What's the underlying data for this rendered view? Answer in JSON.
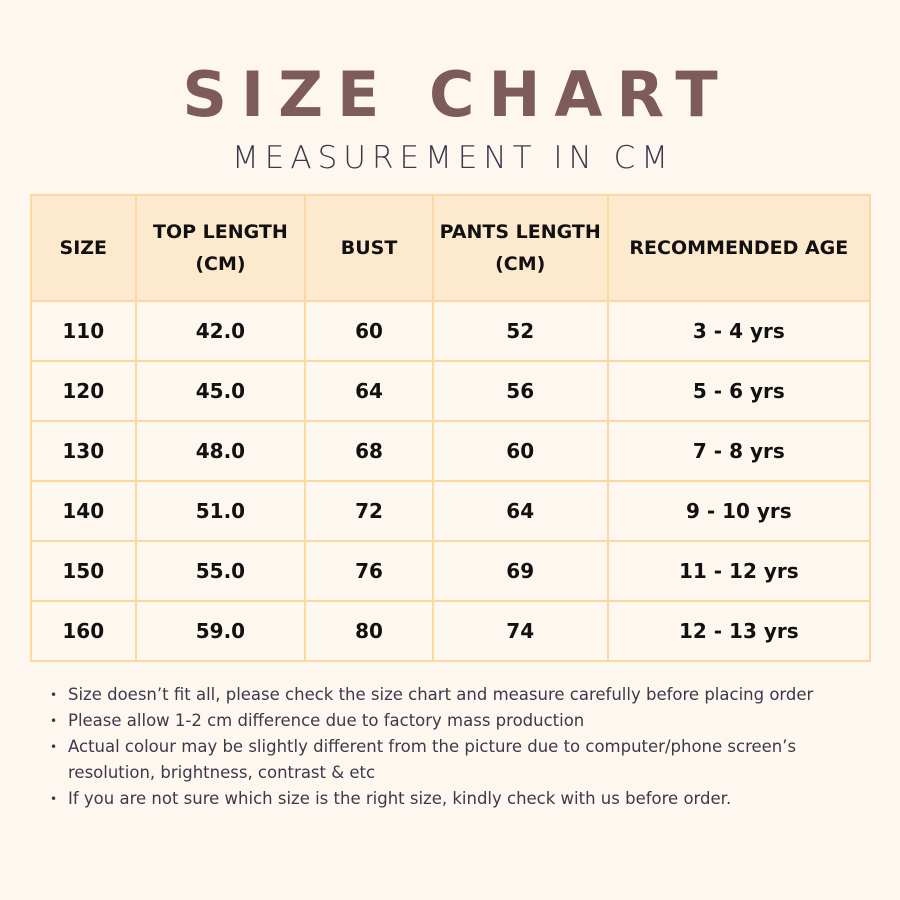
{
  "title": "SIZE CHART",
  "subtitle": "MEASUREMENT IN CM",
  "colors": {
    "title": "#7d5a5b",
    "header_bg": "#fde9cd",
    "border": "#fbd8a0",
    "background": "#fdf7ef"
  },
  "table": {
    "headers": [
      "SIZE",
      "TOP LENGTH (CM)",
      "BUST",
      "PANTS LENGTH (CM)",
      "RECOMMENDED AGE"
    ],
    "rows": [
      [
        "110",
        "42.0",
        "60",
        "52",
        "3 - 4 yrs"
      ],
      [
        "120",
        "45.0",
        "64",
        "56",
        "5 - 6 yrs"
      ],
      [
        "130",
        "48.0",
        "68",
        "60",
        "7 - 8 yrs"
      ],
      [
        "140",
        "51.0",
        "72",
        "64",
        "9 - 10 yrs"
      ],
      [
        "150",
        "55.0",
        "76",
        "69",
        "11 - 12 yrs"
      ],
      [
        "160",
        "59.0",
        "80",
        "74",
        "12 - 13 yrs"
      ]
    ]
  },
  "notes": [
    "Size doesn’t fit all, please check the size chart and measure carefully before placing order",
    "Please allow 1-2 cm difference due to factory mass production",
    "Actual colour may be slightly different from the picture due to computer/phone screen’s resolution, brightness, contrast & etc",
    "If you are not sure which size is the right size, kindly check with us before order."
  ]
}
